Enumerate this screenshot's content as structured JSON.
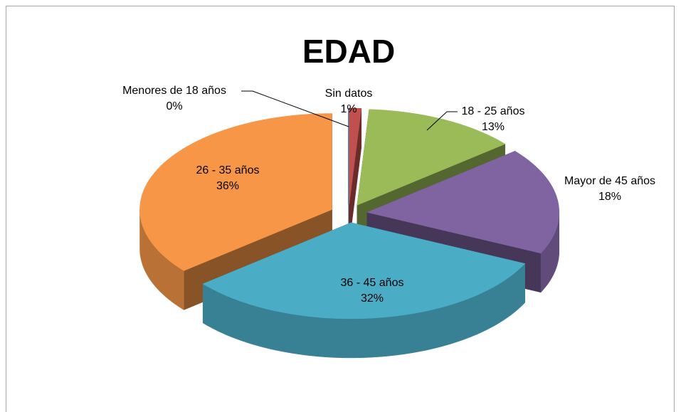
{
  "chart_data": {
    "type": "pie",
    "title": "EDAD",
    "categories": [
      "Menores de 18 años",
      "Sin datos",
      "18 - 25 años",
      "Mayor de 45 años",
      "36 - 45 años",
      "26 - 35 años"
    ],
    "values": [
      0,
      1,
      13,
      18,
      32,
      36
    ],
    "value_labels": [
      "0%",
      "1%",
      "13%",
      "18%",
      "32%",
      "36%"
    ],
    "colors": [
      "#4f81bd",
      "#c0504d",
      "#9bbb59",
      "#8064a2",
      "#4bacc6",
      "#f79646"
    ],
    "three_d": true,
    "exploded": true
  }
}
